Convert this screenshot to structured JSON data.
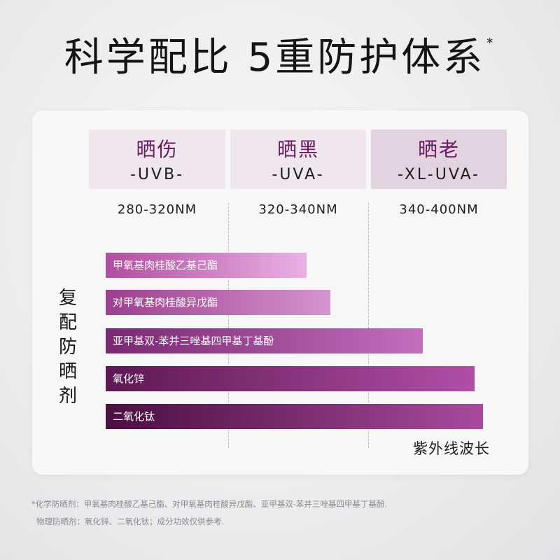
{
  "title": {
    "main": "科学配比 5重防护体系",
    "mark": "*"
  },
  "bands": [
    {
      "name": "晒伤",
      "code": "-UVB-",
      "range": "280-320NM",
      "bg": "#efe6ee"
    },
    {
      "name": "晒黑",
      "code": "-UVA-",
      "range": "320-340NM",
      "bg": "#efe6ee"
    },
    {
      "name": "晒老",
      "code": "-XL-UVA-",
      "range": "340-400NM",
      "bg": "#e3d3e1"
    }
  ],
  "vertical_label": [
    "复",
    "配",
    "防",
    "晒",
    "剂"
  ],
  "bars": [
    {
      "label": "甲氧基肉桂酸乙基己酯",
      "coverage": 0.5,
      "gradient": [
        "#b04d9f",
        "#e9b2e4"
      ]
    },
    {
      "label": "对甲氧基肉桂酸异戊酯",
      "coverage": 0.56,
      "gradient": [
        "#9c3f8f",
        "#d594cf"
      ]
    },
    {
      "label": "亚甲基双-苯并三唑基四甲基丁基酚",
      "coverage": 0.79,
      "gradient": [
        "#7a2871",
        "#c46fbe"
      ]
    },
    {
      "label": "氧化锌",
      "coverage": 0.92,
      "gradient": [
        "#5e1853",
        "#b14ea7"
      ]
    },
    {
      "label": "二氧化钛",
      "coverage": 0.94,
      "gradient": [
        "#4a1040",
        "#a84a9d"
      ]
    }
  ],
  "axis_label": "紫外线波长",
  "footnotes": [
    "*化学防晒剂：甲氧基肉桂酸乙基己酯、对甲氧基肉桂酸异戊酯、亚甲基双-苯并三唑基四甲基丁基酚.",
    "物理防晒剂：氧化锌、二氧化钛；成分功效仅供参考."
  ]
}
